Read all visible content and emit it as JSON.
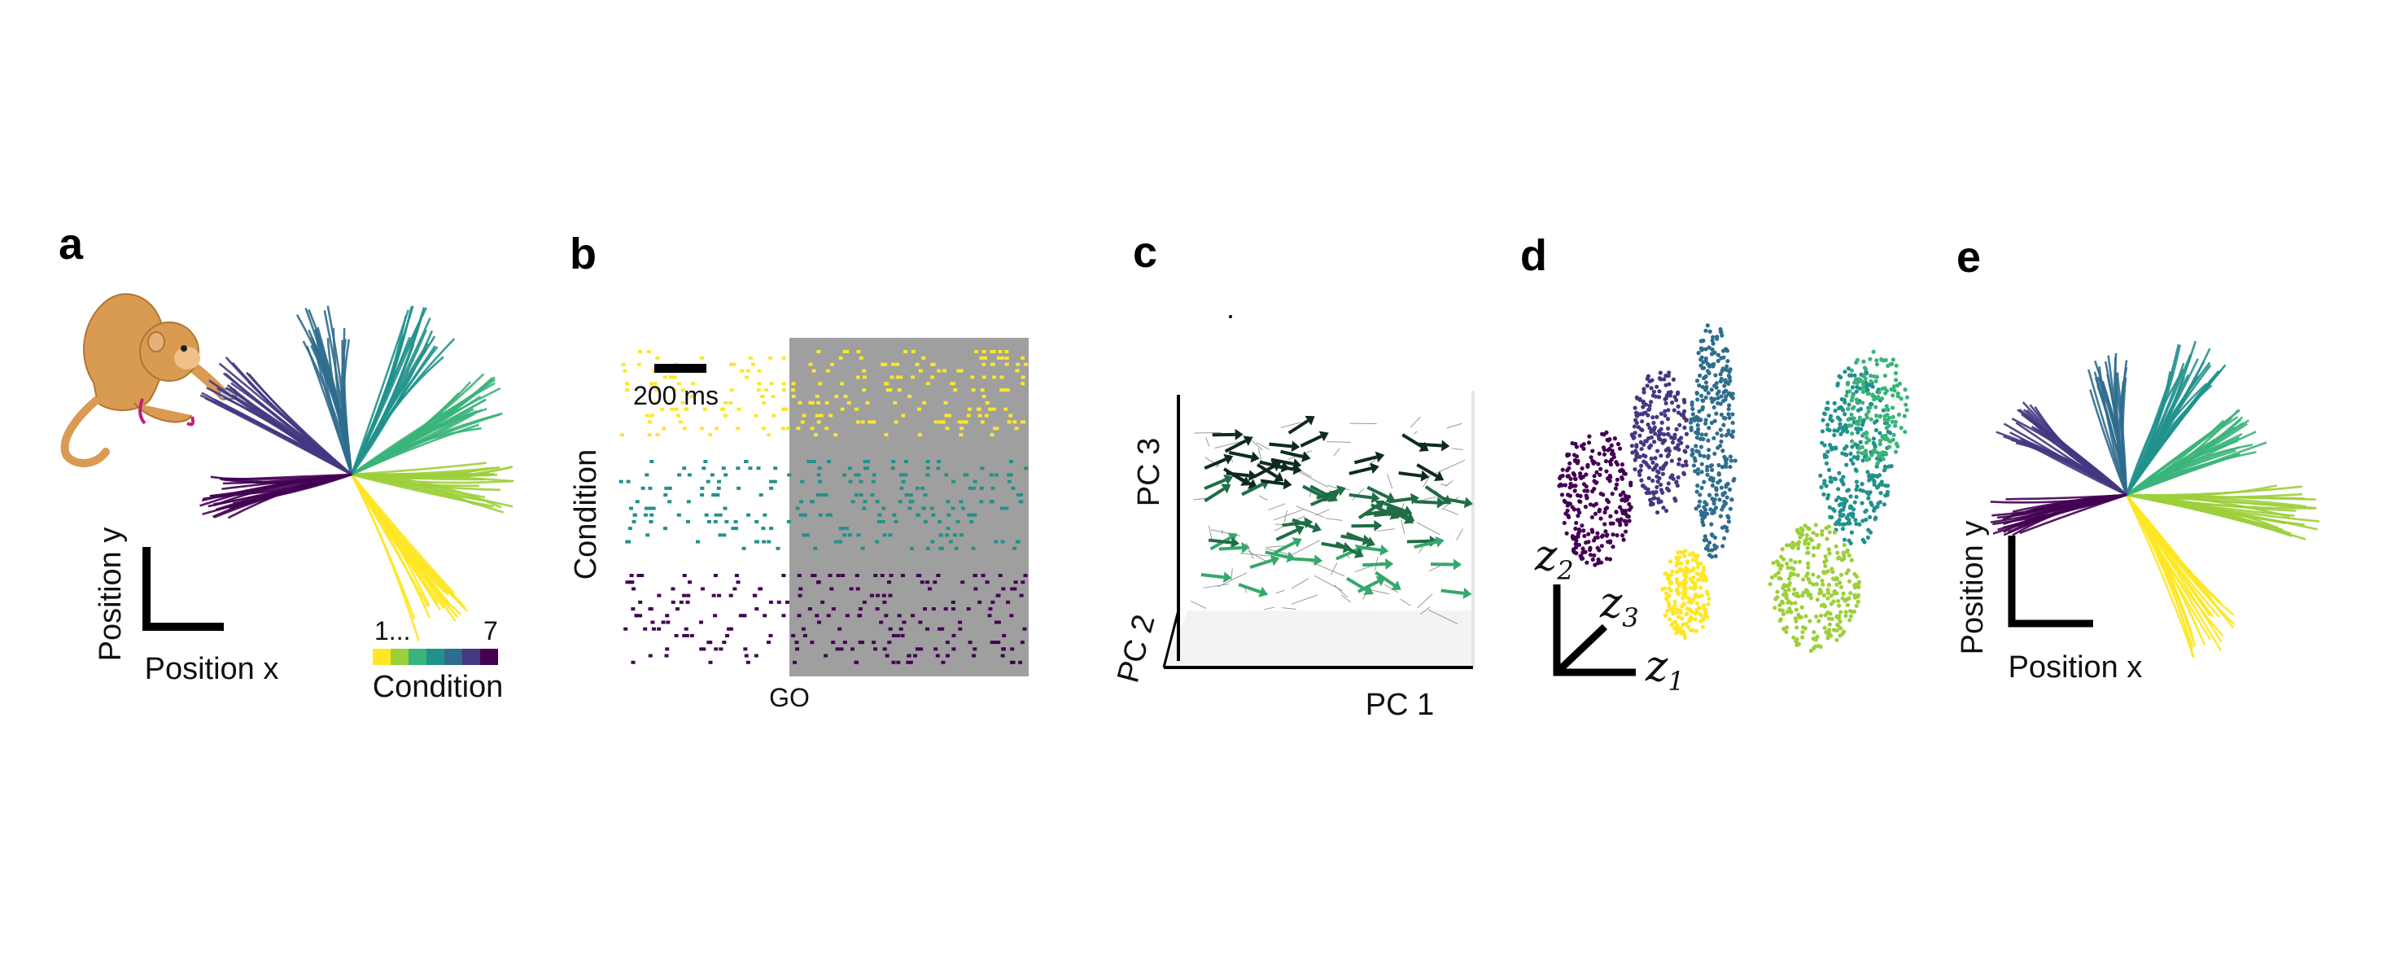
{
  "palette": [
    "#fde725",
    "#9ccf3a",
    "#3ab47a",
    "#21918c",
    "#2f6d8e",
    "#453781",
    "#440154"
  ],
  "panels": {
    "a": {
      "letter": "a",
      "xlabel": "Position x",
      "ylabel": "Position y",
      "colorbar_min": "1...",
      "colorbar_max": "7",
      "colorbar_label": "Condition",
      "reach_angles_deg": [
        -58,
        -5,
        28,
        62,
        100,
        145,
        190
      ],
      "illustration": "monkey-reaching"
    },
    "b": {
      "letter": "b",
      "scalebar_label": "200 ms",
      "ylabel": "Condition",
      "xlabel": "GO"
    },
    "c": {
      "letter": "c",
      "x_axis": "PC 1",
      "y_axis": "PC 2",
      "z_axis": "PC 3"
    },
    "d": {
      "letter": "d",
      "axis_1": "z",
      "axis_1_sub": "1",
      "axis_2": "z",
      "axis_2_sub": "2",
      "axis_3": "z",
      "axis_3_sub": "3"
    },
    "e": {
      "letter": "e",
      "xlabel": "Position x",
      "ylabel": "Position y",
      "reach_angles_deg": [
        -58,
        -5,
        28,
        62,
        100,
        145,
        190
      ]
    }
  }
}
